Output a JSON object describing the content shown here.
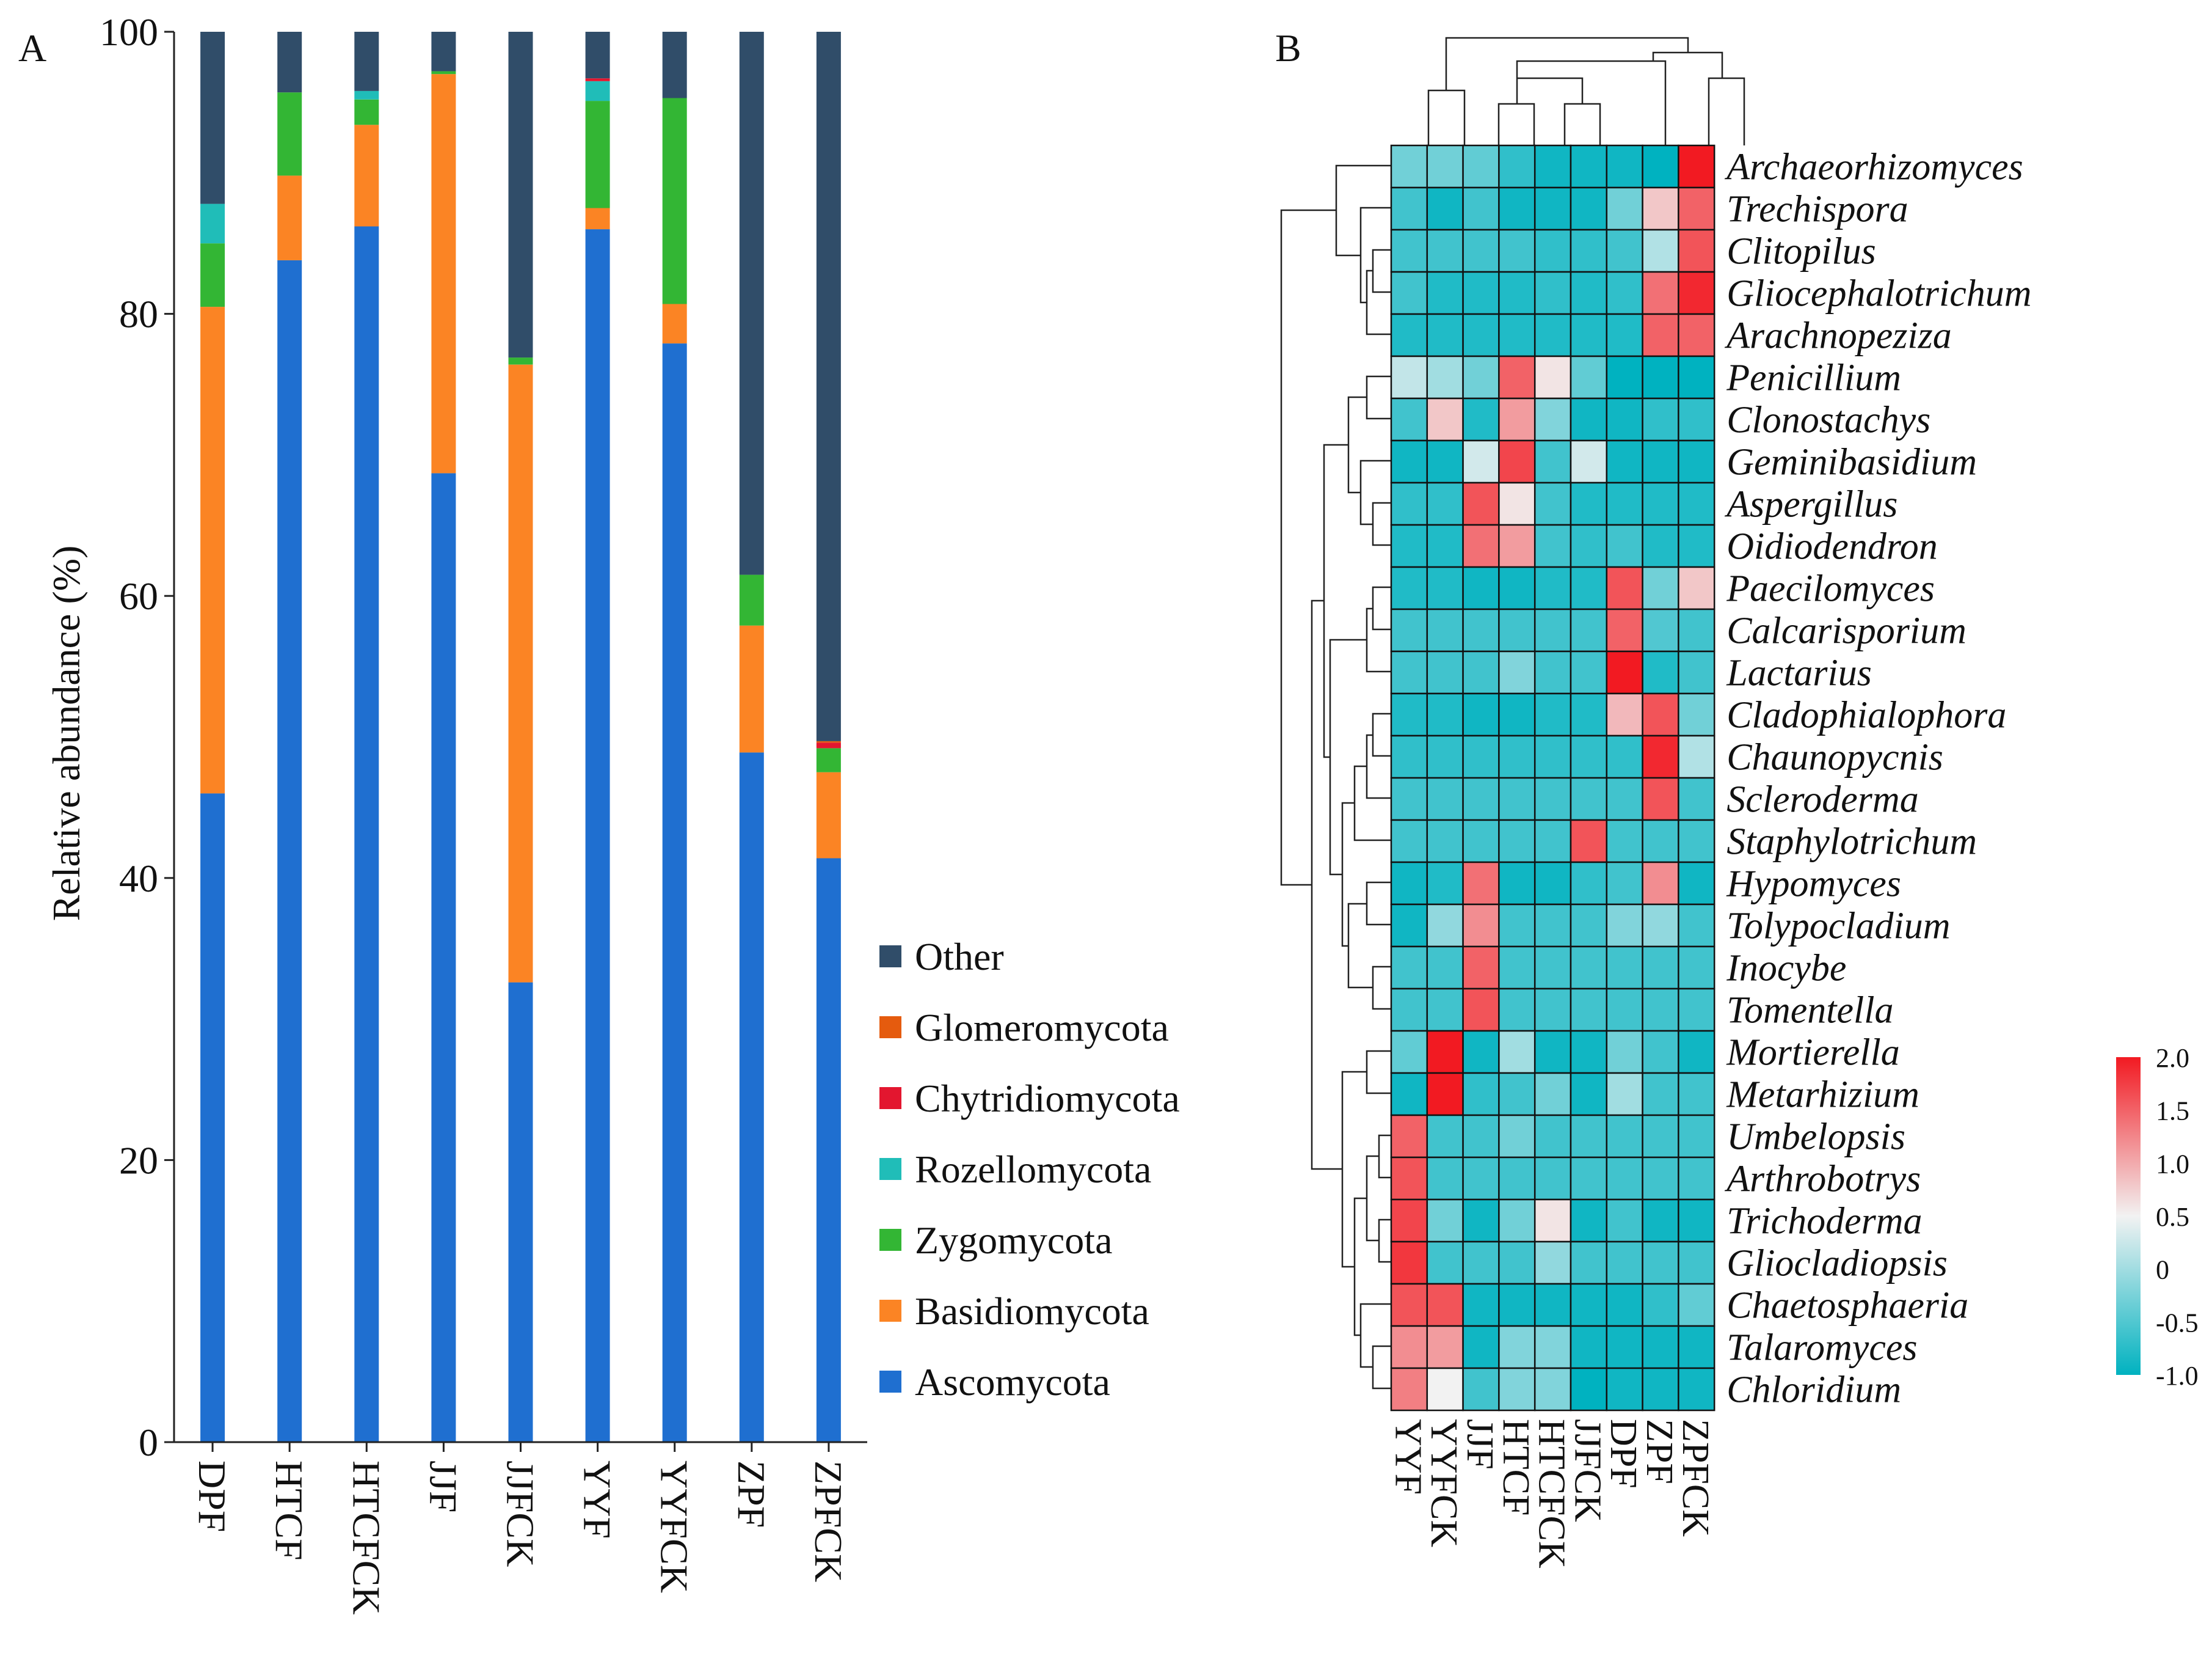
{
  "panels": {
    "a": "A",
    "b": "B"
  },
  "colors": {
    "Ascomycota": "#1f6fd0",
    "Basidiomycota": "#fb8424",
    "Zygomycota": "#33b634",
    "Rozellomycota": "#20bdb8",
    "Chytridiomycota": "#e3162f",
    "Glomeromycota": "#e55b0e",
    "Other": "#304d69",
    "heat_low": "#00b2c0",
    "heat_mid": "#f2f2f2",
    "heat_high": "#f21a22"
  },
  "chart_data": [
    {
      "type": "bar",
      "stacked": true,
      "title": "",
      "xlabel": "",
      "ylabel": "Relative abundance (%)",
      "ylim": [
        0,
        100
      ],
      "yticks": [
        "0",
        "20",
        "40",
        "60",
        "80",
        "100"
      ],
      "categories": [
        "DPF",
        "HTCF",
        "HTCFCK",
        "JJF",
        "JJFCK",
        "YYF",
        "YYFCK",
        "ZPF",
        "ZPFCK"
      ],
      "legend": [
        "Other",
        "Glomeromycota",
        "Chytridiomycota",
        "Rozellomycota",
        "Zygomycota",
        "Basidiomycota",
        "Ascomycota"
      ],
      "legend_position": "right",
      "series": [
        {
          "name": "Ascomycota",
          "values": [
            46.0,
            83.8,
            86.2,
            68.7,
            32.6,
            86.0,
            77.9,
            48.9,
            41.4
          ]
        },
        {
          "name": "Basidiomycota",
          "values": [
            34.5,
            6.0,
            7.2,
            28.3,
            43.8,
            1.5,
            2.8,
            9.0,
            6.1
          ]
        },
        {
          "name": "Zygomycota",
          "values": [
            4.5,
            5.9,
            1.8,
            0.2,
            0.5,
            7.6,
            14.6,
            3.6,
            1.7
          ]
        },
        {
          "name": "Rozellomycota",
          "values": [
            2.8,
            0.0,
            0.6,
            0.0,
            0.0,
            1.4,
            0.0,
            0.0,
            0.0
          ]
        },
        {
          "name": "Chytridiomycota",
          "values": [
            0.0,
            0.0,
            0.0,
            0.0,
            0.0,
            0.2,
            0.0,
            0.0,
            0.4
          ]
        },
        {
          "name": "Glomeromycota",
          "values": [
            0.0,
            0.0,
            0.0,
            0.0,
            0.0,
            0.0,
            0.0,
            0.0,
            0.1
          ]
        },
        {
          "name": "Other",
          "values": [
            12.2,
            4.3,
            4.2,
            2.8,
            23.1,
            3.3,
            4.7,
            38.5,
            50.3
          ]
        }
      ]
    },
    {
      "type": "heatmap",
      "title": "",
      "columns": [
        "YYF",
        "YYFCK",
        "JJF",
        "HTCF",
        "HTCFCK",
        "JJFCK",
        "DPF",
        "ZPF",
        "ZPFCK"
      ],
      "rows": [
        "Archaeorhizomyces",
        "Trechispora",
        "Clitopilus",
        "Gliocephalotrichum",
        "Arachnopeziza",
        "Penicillium",
        "Clonostachys",
        "Geminibasidium",
        "Aspergillus",
        "Oidiodendron",
        "Paecilomyces",
        "Calcarisporium",
        "Lactarius",
        "Cladophialophora",
        "Chaunopycnis",
        "Scleroderma",
        "Staphylotrichum",
        "Hypomyces",
        "Tolypocladium",
        "Inocybe",
        "Tomentella",
        "Mortierella",
        "Metarhizium",
        "Umbelopsis",
        "Arthrobotrys",
        "Trichoderma",
        "Gliocladiopsis",
        "Chaetosphaeria",
        "Talaromyces",
        "Chloridium"
      ],
      "values": [
        [
          -0.3,
          -0.3,
          -0.4,
          -0.7,
          -0.9,
          -0.9,
          -0.9,
          -1.0,
          2.0
        ],
        [
          -0.6,
          -0.9,
          -0.6,
          -0.9,
          -0.9,
          -0.9,
          -0.3,
          0.8,
          1.5
        ],
        [
          -0.6,
          -0.6,
          -0.6,
          -0.6,
          -0.7,
          -0.7,
          -0.6,
          0.1,
          1.6
        ],
        [
          -0.6,
          -0.8,
          -0.8,
          -0.8,
          -0.7,
          -0.8,
          -0.7,
          1.4,
          1.9
        ],
        [
          -0.8,
          -0.8,
          -0.8,
          -0.8,
          -0.8,
          -0.8,
          -0.8,
          1.5,
          1.5
        ],
        [
          0.2,
          0.0,
          -0.3,
          1.5,
          0.6,
          -0.4,
          -1.0,
          -1.0,
          -1.0
        ],
        [
          -0.6,
          0.8,
          -0.8,
          1.1,
          -0.2,
          -0.9,
          -0.9,
          -0.7,
          -0.7
        ],
        [
          -0.9,
          -0.9,
          0.3,
          1.7,
          -0.6,
          0.3,
          -0.9,
          -0.9,
          -0.9
        ],
        [
          -0.7,
          -0.7,
          1.6,
          0.6,
          -0.6,
          -0.8,
          -0.8,
          -0.8,
          -0.8
        ],
        [
          -0.8,
          -0.8,
          1.4,
          1.1,
          -0.6,
          -0.7,
          -0.6,
          -0.8,
          -0.8
        ],
        [
          -0.8,
          -0.8,
          -0.9,
          -0.9,
          -0.8,
          -0.8,
          1.6,
          -0.3,
          0.8
        ],
        [
          -0.6,
          -0.6,
          -0.6,
          -0.6,
          -0.6,
          -0.6,
          1.5,
          -0.5,
          -0.6
        ],
        [
          -0.6,
          -0.6,
          -0.6,
          -0.2,
          -0.6,
          -0.6,
          2.0,
          -0.8,
          -0.6
        ],
        [
          -0.8,
          -0.8,
          -0.9,
          -0.9,
          -0.8,
          -0.8,
          0.9,
          1.6,
          -0.3
        ],
        [
          -0.7,
          -0.7,
          -0.7,
          -0.7,
          -0.7,
          -0.7,
          -0.7,
          1.9,
          0.1
        ],
        [
          -0.6,
          -0.6,
          -0.6,
          -0.6,
          -0.6,
          -0.6,
          -0.6,
          1.6,
          -0.6
        ],
        [
          -0.6,
          -0.6,
          -0.6,
          -0.6,
          -0.6,
          1.6,
          -0.6,
          -0.6,
          -0.6
        ],
        [
          -0.9,
          -0.8,
          1.4,
          -0.9,
          -0.9,
          -0.7,
          -0.6,
          1.2,
          -0.9
        ],
        [
          -0.9,
          -0.1,
          1.2,
          -0.6,
          -0.6,
          -0.6,
          -0.2,
          -0.1,
          -0.6
        ],
        [
          -0.6,
          -0.6,
          1.5,
          -0.6,
          -0.6,
          -0.6,
          -0.6,
          -0.6,
          -0.6
        ],
        [
          -0.6,
          -0.6,
          1.6,
          -0.6,
          -0.6,
          -0.6,
          -0.6,
          -0.6,
          -0.6
        ],
        [
          -0.4,
          2.0,
          -0.9,
          0.0,
          -0.9,
          -0.9,
          -0.3,
          -0.6,
          -0.9
        ],
        [
          -0.9,
          2.0,
          -0.7,
          -0.6,
          -0.3,
          -0.9,
          0.0,
          -0.6,
          -0.6
        ],
        [
          1.5,
          -0.6,
          -0.6,
          -0.3,
          -0.6,
          -0.6,
          -0.6,
          -0.6,
          -0.6
        ],
        [
          1.6,
          -0.6,
          -0.6,
          -0.6,
          -0.6,
          -0.6,
          -0.6,
          -0.6,
          -0.6
        ],
        [
          1.7,
          -0.3,
          -0.9,
          -0.3,
          0.6,
          -0.9,
          -0.6,
          -0.9,
          -0.9
        ],
        [
          1.8,
          -0.6,
          -0.6,
          -0.6,
          -0.1,
          -0.6,
          -0.6,
          -0.6,
          -0.6
        ],
        [
          1.6,
          1.6,
          -0.9,
          -0.9,
          -0.9,
          -0.9,
          -0.9,
          -0.7,
          -0.4
        ],
        [
          1.2,
          1.1,
          -0.9,
          -0.2,
          -0.2,
          -0.9,
          -0.9,
          -0.9,
          -0.9
        ],
        [
          1.3,
          0.5,
          -0.6,
          -0.2,
          -0.2,
          -1.0,
          -0.9,
          -0.9,
          -0.9
        ]
      ],
      "colorbar": {
        "range": [
          -1.0,
          2.0
        ],
        "ticks": [
          "2.0",
          "1.5",
          "1.0",
          "0.5",
          "0",
          "-0.5",
          "-1.0"
        ]
      }
    }
  ]
}
